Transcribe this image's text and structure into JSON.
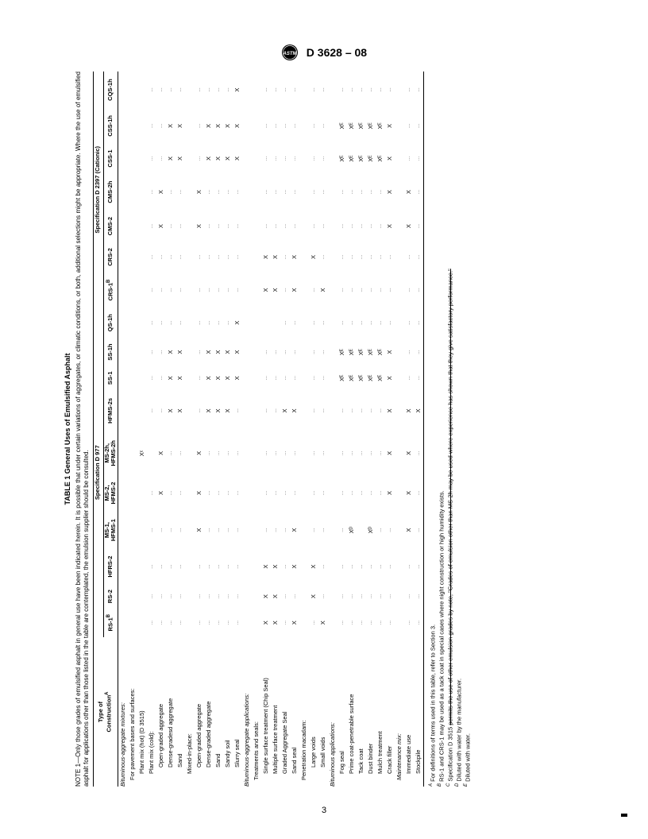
{
  "header": {
    "designation": "D 3628 – 08"
  },
  "pageNumber": "3",
  "table": {
    "title": "TABLE 1  General Uses of Emulsified Asphalt",
    "noteLabel": "NOTE 1",
    "note": "—Only those grades of emulsified asphalt in general use have been indicated herein. It is possible that under certain variations of aggregates, or climatic conditions, or both, additional selections might be appropriate. Where the use of emulsified asphalt for applications other than those listed in the table are contemplated, the emulsion supplier should be consulted.",
    "colTypeHeader": [
      "Type of",
      "Construction"
    ],
    "colTypeSup": "A",
    "specHeaders": {
      "anionic": "Specification D 977",
      "cationic": "Specification D 2397 (Cationic)"
    },
    "columns": [
      "RS-1",
      "RS-2",
      "HFRS-2",
      "MS-1, HFMS-1",
      "MS-2, HFMS-2",
      "MS-2h, HFMS-2h",
      "HFMS-2s",
      "SS-1",
      "SS-1h",
      "QS-1h",
      "CRS-1",
      "CRS-2",
      "CMS-2",
      "CMS-2h",
      "CSS-1",
      "CSS-1h",
      "CQS-1h"
    ],
    "colSup": [
      "B",
      "",
      "",
      "",
      "",
      "",
      "",
      "",
      "",
      "",
      "B",
      "",
      "",
      "",
      "",
      "",
      ""
    ],
    "anionicSpan": 10,
    "cationicSpan": 7,
    "rows": [
      {
        "label": "Bituminous-aggregate mixtures:",
        "cls": "sect-italic ind0",
        "v": [
          null,
          null,
          null,
          null,
          null,
          null,
          null,
          null,
          null,
          null,
          null,
          null,
          null,
          null,
          null,
          null,
          null
        ]
      },
      {
        "label": "For pavement bases and surfaces:",
        "cls": "ind1",
        "v": [
          null,
          null,
          null,
          null,
          null,
          null,
          null,
          null,
          null,
          null,
          null,
          null,
          null,
          null,
          null,
          null,
          null
        ]
      },
      {
        "label": "Plant mix (hot) (D 3515)",
        "cls": "ind2",
        "v": [
          "",
          "",
          "",
          "",
          "",
          "Xᶜ",
          "",
          "",
          "",
          "",
          "",
          "",
          "",
          "",
          "",
          "",
          ""
        ]
      },
      {
        "label": "Plant mix (cold):",
        "cls": "ind2",
        "v": [
          "...",
          "...",
          "...",
          "...",
          "...",
          "",
          "...",
          "...",
          "...",
          "...",
          "...",
          "...",
          "...",
          "...",
          "...",
          "...",
          "..."
        ]
      },
      {
        "label": "Open-graded aggregate",
        "cls": "ind3",
        "v": [
          "...",
          "...",
          "...",
          "...",
          "X",
          "X",
          "...",
          "...",
          "...",
          "...",
          "...",
          "...",
          "X",
          "X",
          "...",
          "...",
          "..."
        ]
      },
      {
        "label": "Dense-gradesd aggregate",
        "cls": "ind3",
        "v": [
          "...",
          "...",
          "...",
          "...",
          "...",
          "...",
          "X",
          "X",
          "X",
          "...",
          "...",
          "...",
          "...",
          "...",
          "X",
          "X",
          "..."
        ]
      },
      {
        "label": "Sand",
        "cls": "ind3",
        "v": [
          "...",
          "...",
          "...",
          "...",
          "...",
          "...",
          "X",
          "X",
          "X",
          "...",
          "...",
          "...",
          "...",
          "...",
          "X",
          "X",
          "..."
        ]
      },
      {
        "label": "Mixed-in-place:",
        "cls": "ind2",
        "v": [
          null,
          null,
          null,
          null,
          null,
          null,
          null,
          null,
          null,
          null,
          null,
          null,
          null,
          null,
          null,
          null,
          null
        ]
      },
      {
        "label": "Open-graded aggregate",
        "cls": "ind3",
        "v": [
          "...",
          "...",
          "...",
          "X",
          "X",
          "X",
          "...",
          "...",
          "...",
          "...",
          "...",
          "...",
          "X",
          "X",
          "...",
          "...",
          "..."
        ]
      },
      {
        "label": "Dense-graded aggregate",
        "cls": "ind3",
        "v": [
          "...",
          "...",
          "...",
          "...",
          "...",
          "...",
          "X",
          "X",
          "X",
          "...",
          "...",
          "...",
          "...",
          "...",
          "X",
          "X",
          "..."
        ]
      },
      {
        "label": "Sand",
        "cls": "ind3",
        "v": [
          "...",
          "...",
          "...",
          "...",
          "...",
          "...",
          "X",
          "X",
          "X",
          "...",
          "...",
          "...",
          "...",
          "...",
          "X",
          "X",
          "..."
        ]
      },
      {
        "label": "Sandy soil",
        "cls": "ind3",
        "v": [
          "...",
          "...",
          "...",
          "...",
          "...",
          "...",
          "X",
          "X",
          "X",
          "...",
          "...",
          "...",
          "...",
          "...",
          "X",
          "X",
          "..."
        ]
      },
      {
        "label": "Slurry seal",
        "cls": "ind3",
        "v": [
          "...",
          "...",
          "...",
          "...",
          "...",
          "...",
          "...",
          "X",
          "X",
          "X",
          "...",
          "...",
          "...",
          "...",
          "X",
          "X",
          "X"
        ]
      },
      {
        "label": "Bituminous-aggregate applications:",
        "cls": "sect-italic ind0",
        "v": [
          null,
          null,
          null,
          null,
          null,
          null,
          null,
          null,
          null,
          null,
          null,
          null,
          null,
          null,
          null,
          null,
          null
        ]
      },
      {
        "label": "Treatments and seals:",
        "cls": "ind1",
        "v": [
          null,
          null,
          null,
          null,
          null,
          null,
          null,
          null,
          null,
          null,
          null,
          null,
          null,
          null,
          null,
          null,
          null
        ]
      },
      {
        "label": "Single surface treatment (Chip Seal)",
        "cls": "ind2",
        "v": [
          "X",
          "X",
          "X",
          "...",
          "...",
          "...",
          "...",
          "...",
          "...",
          "",
          "X",
          "X",
          "...",
          "...",
          "...",
          "...",
          "..."
        ]
      },
      {
        "label": "Multiple surface treatment",
        "cls": "ind2",
        "v": [
          "X",
          "X",
          "X",
          "...",
          "...",
          "...",
          "...",
          "...",
          "...",
          "",
          "X",
          "X",
          "...",
          "...",
          "...",
          "...",
          "..."
        ]
      },
      {
        "label": "Graded Aggregate Seal",
        "cls": "ind2",
        "v": [
          "...",
          "...",
          "...",
          "...",
          "...",
          "...",
          "X",
          "...",
          "...",
          "...",
          "...",
          "...",
          "...",
          "...",
          "...",
          "...",
          "..."
        ]
      },
      {
        "label": "Sand seal",
        "cls": "ind2",
        "v": [
          "X",
          "...",
          "X",
          "X",
          "...",
          "...",
          "X",
          "...",
          "...",
          "...",
          "X",
          "X",
          "...",
          "...",
          "...",
          "...",
          "..."
        ]
      },
      {
        "label": "Penetration macadam:",
        "cls": "ind1",
        "v": [
          "",
          "",
          "",
          "",
          "",
          "",
          "",
          "",
          "",
          "",
          "",
          "",
          "",
          "",
          "",
          "",
          ""
        ]
      },
      {
        "label": "Large voids",
        "cls": "ind3",
        "v": [
          "...",
          "X",
          "X",
          "...",
          "...",
          "...",
          "...",
          "...",
          "...",
          "...",
          "...",
          "X",
          "...",
          "...",
          "...",
          "...",
          "..."
        ]
      },
      {
        "label": "Small voids",
        "cls": "ind3",
        "v": [
          "X",
          "...",
          "...",
          "...",
          "...",
          "...",
          "...",
          "...",
          "...",
          "...",
          "X",
          "...",
          "...",
          "...",
          "...",
          "...",
          "..."
        ]
      },
      {
        "label": "Bituminous applications:",
        "cls": "sect-italic ind0",
        "v": [
          null,
          null,
          null,
          null,
          null,
          null,
          null,
          null,
          null,
          null,
          null,
          null,
          null,
          null,
          null,
          null,
          null
        ]
      },
      {
        "label": "Fog seal",
        "cls": "ind2",
        "v": [
          "...",
          "...",
          "...",
          "...",
          "...",
          "...",
          "...",
          "Xᴱ",
          "Xᴱ",
          "...",
          "...",
          "...",
          "...",
          "...",
          "Xᴱ",
          "Xᴱ",
          "..."
        ]
      },
      {
        "label": "Prime coat-penetrable surface",
        "cls": "ind2",
        "v": [
          "...",
          "...",
          "...",
          "Xᴰ",
          "...",
          "...",
          "...",
          "Xᴱ",
          "Xᴱ",
          "...",
          "...",
          "...",
          "...",
          "...",
          "Xᴱ",
          "Xᴱ",
          "..."
        ]
      },
      {
        "label": "Tack coat",
        "cls": "ind2",
        "v": [
          "...",
          "...",
          "...",
          "",
          "...",
          "...",
          "...",
          "Xᴱ",
          "Xᴱ",
          "...",
          "...",
          "...",
          "...",
          "...",
          "Xᴱ",
          "Xᴱ",
          "..."
        ]
      },
      {
        "label": "Dust binder",
        "cls": "ind2",
        "v": [
          "...",
          "...",
          "...",
          "Xᴰ",
          "...",
          "...",
          "...",
          "Xᴱ",
          "Xᴱ",
          "...",
          "...",
          "...",
          "...",
          "...",
          "Xᴱ",
          "Xᴱ",
          "..."
        ]
      },
      {
        "label": "Mulch treatment",
        "cls": "ind2",
        "v": [
          "...",
          "...",
          "...",
          "...",
          "...",
          "...",
          "...",
          "Xᴱ",
          "Xᴱ",
          "...",
          "...",
          "...",
          "...",
          "...",
          "Xᴱ",
          "Xᴱ",
          "..."
        ]
      },
      {
        "label": "Crack filler",
        "cls": "ind2",
        "v": [
          "...",
          "...",
          "...",
          "...",
          "X",
          "X",
          "X",
          "X",
          "X",
          "...",
          "...",
          "...",
          "X",
          "X",
          "X",
          "X",
          "..."
        ]
      },
      {
        "label": "Maintenance mix:",
        "cls": "sect-italic ind1",
        "v": [
          null,
          null,
          null,
          null,
          null,
          null,
          null,
          null,
          null,
          null,
          null,
          null,
          null,
          null,
          null,
          null,
          null
        ]
      },
      {
        "label": "Immediate use",
        "cls": "ind2",
        "v": [
          "...",
          "...",
          "...",
          "X",
          "X",
          "X",
          "X",
          "...",
          "...",
          "...",
          "...",
          "...",
          "X",
          "X",
          "...",
          "...",
          "..."
        ]
      },
      {
        "label": "Stockpile",
        "cls": "ind2",
        "v": [
          "...",
          "...",
          "...",
          "...",
          "...",
          "...",
          "X",
          "...",
          "...",
          "...",
          "...",
          "...",
          "...",
          "...",
          "...",
          "...",
          "..."
        ]
      }
    ],
    "footnotes": [
      {
        "sup": "A",
        "text": "For definitions of terms used in this table, refer to Section 3."
      },
      {
        "sup": "B",
        "text": "RS-1 and CRS-1 may be used as a tack coat in special cases where night construction or high humidity exists."
      },
      {
        "sup": "C",
        "text": "Specification D 3515 ",
        "strike": "permits the use of other emulsion grades by note, \"Grades of emulsion other than MS-2h may be used where experience has shown that they give satisfactory performance.\""
      },
      {
        "sup": "D",
        "text": "Diluted with water by the manufacturer."
      },
      {
        "sup": "E",
        "text": "Diluted with water."
      }
    ]
  }
}
